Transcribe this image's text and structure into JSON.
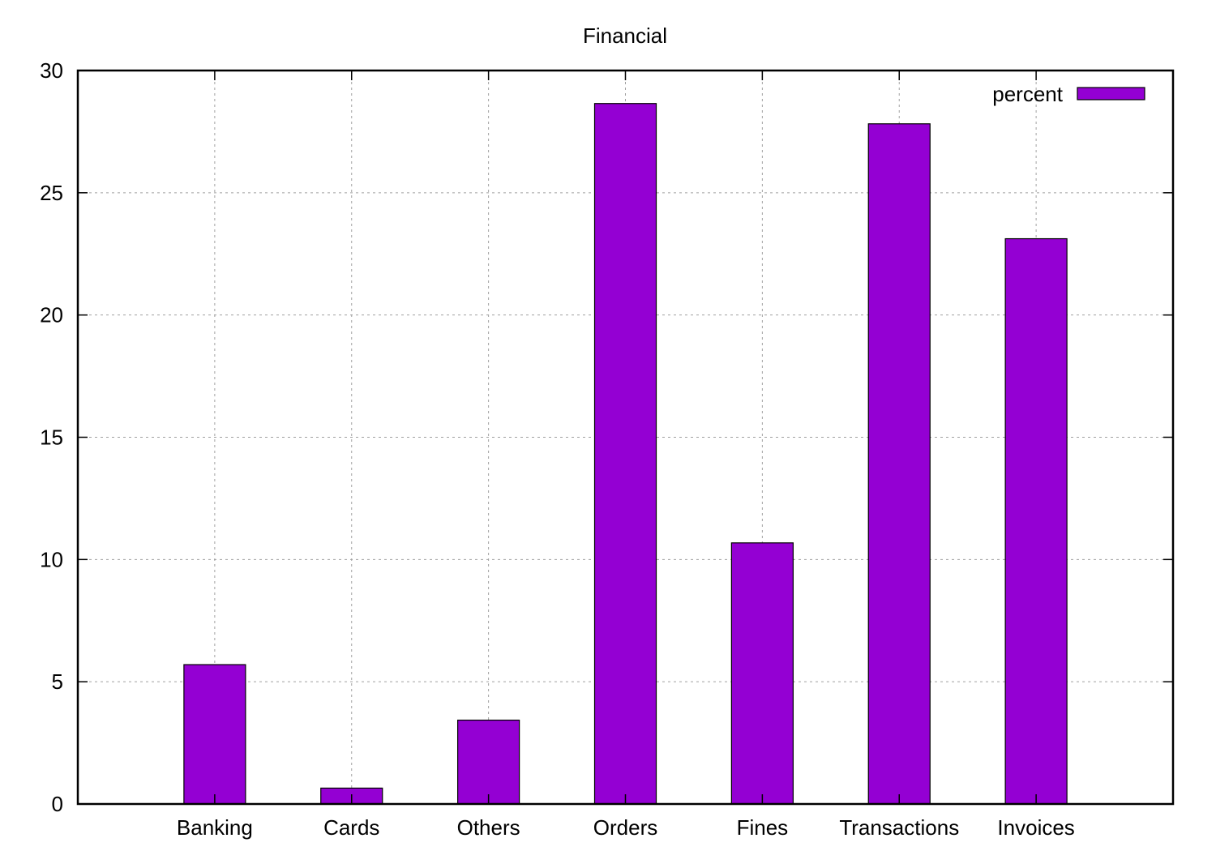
{
  "chart_data": {
    "type": "bar",
    "title": "Financial",
    "xlabel": "",
    "ylabel": "",
    "categories": [
      "Banking",
      "Cards",
      "Others",
      "Orders",
      "Fines",
      "Transactions",
      "Invoices"
    ],
    "series": [
      {
        "name": "percent",
        "values": [
          5.7,
          0.65,
          3.43,
          28.65,
          10.68,
          27.82,
          23.12
        ]
      }
    ],
    "ylim": [
      0,
      30
    ],
    "yticks": [
      0,
      5,
      10,
      15,
      20,
      25,
      30
    ],
    "grid": true,
    "legend_position": "top-right",
    "colors": {
      "bar": "#9400d3",
      "axis": "#000000",
      "grid": "#a0a0a0"
    }
  }
}
